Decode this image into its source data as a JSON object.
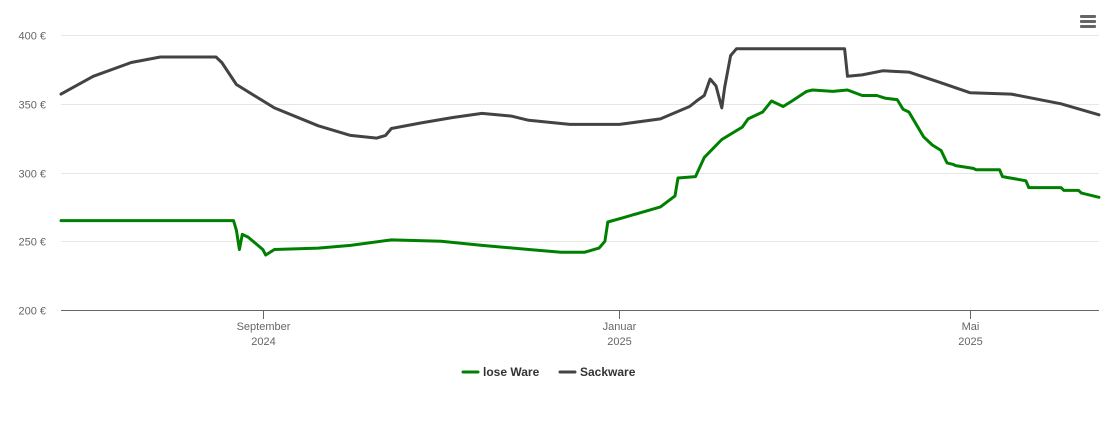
{
  "menu": {
    "icon": "hamburger-menu-icon"
  },
  "chart_data": {
    "type": "line",
    "ylim": [
      200,
      400
    ],
    "xlim": [
      "2024-06-24",
      "2025-06-14"
    ],
    "y_ticks": [
      {
        "value": 200,
        "label": "200 €"
      },
      {
        "value": 250,
        "label": "250 €"
      },
      {
        "value": 300,
        "label": "300 €"
      },
      {
        "value": 350,
        "label": "350 €"
      },
      {
        "value": 400,
        "label": "400 €"
      }
    ],
    "x_ticks": [
      {
        "date": "2024-09-01",
        "line1": "September",
        "line2": "2024"
      },
      {
        "date": "2025-01-01",
        "line1": "Januar",
        "line2": "2025"
      },
      {
        "date": "2025-05-01",
        "line1": "Mai",
        "line2": "2025"
      }
    ],
    "grid": true,
    "legend": "bottom-center",
    "series": [
      {
        "name": "lose Ware",
        "color": "#008000",
        "points": [
          [
            "2024-06-24",
            265
          ],
          [
            "2024-08-22",
            265
          ],
          [
            "2024-08-23",
            258
          ],
          [
            "2024-08-24",
            244
          ],
          [
            "2024-08-25",
            255
          ],
          [
            "2024-08-27",
            253
          ],
          [
            "2024-09-01",
            244
          ],
          [
            "2024-09-02",
            240
          ],
          [
            "2024-09-05",
            244
          ],
          [
            "2024-09-20",
            245
          ],
          [
            "2024-10-01",
            247
          ],
          [
            "2024-10-15",
            251
          ],
          [
            "2024-11-01",
            250
          ],
          [
            "2024-11-15",
            247
          ],
          [
            "2024-12-01",
            244
          ],
          [
            "2024-12-12",
            242
          ],
          [
            "2024-12-20",
            242
          ],
          [
            "2024-12-25",
            245
          ],
          [
            "2024-12-27",
            250
          ],
          [
            "2024-12-28",
            264
          ],
          [
            "2025-01-02",
            267
          ],
          [
            "2025-01-15",
            275
          ],
          [
            "2025-01-20",
            283
          ],
          [
            "2025-01-21",
            296
          ],
          [
            "2025-01-27",
            297
          ],
          [
            "2025-01-30",
            311
          ],
          [
            "2025-02-05",
            324
          ],
          [
            "2025-02-12",
            333
          ],
          [
            "2025-02-14",
            339
          ],
          [
            "2025-02-19",
            344
          ],
          [
            "2025-02-22",
            352
          ],
          [
            "2025-02-26",
            348
          ],
          [
            "2025-03-01",
            352
          ],
          [
            "2025-03-06",
            359
          ],
          [
            "2025-03-08",
            360
          ],
          [
            "2025-03-15",
            359
          ],
          [
            "2025-03-20",
            360
          ],
          [
            "2025-03-25",
            356
          ],
          [
            "2025-03-30",
            356
          ],
          [
            "2025-04-02",
            354
          ],
          [
            "2025-04-06",
            353
          ],
          [
            "2025-04-08",
            346
          ],
          [
            "2025-04-10",
            344
          ],
          [
            "2025-04-15",
            326
          ],
          [
            "2025-04-18",
            320
          ],
          [
            "2025-04-21",
            316
          ],
          [
            "2025-04-23",
            307
          ],
          [
            "2025-04-25",
            306
          ],
          [
            "2025-04-26",
            305
          ],
          [
            "2025-05-02",
            303
          ],
          [
            "2025-05-03",
            302
          ],
          [
            "2025-05-11",
            302
          ],
          [
            "2025-05-12",
            297
          ],
          [
            "2025-05-20",
            294
          ],
          [
            "2025-05-21",
            289
          ],
          [
            "2025-06-01",
            289
          ],
          [
            "2025-06-02",
            287
          ],
          [
            "2025-06-07",
            287
          ],
          [
            "2025-06-08",
            285
          ],
          [
            "2025-06-14",
            282
          ]
        ]
      },
      {
        "name": "Sackware",
        "color": "#434343",
        "points": [
          [
            "2024-06-24",
            357
          ],
          [
            "2024-07-05",
            370
          ],
          [
            "2024-07-18",
            380
          ],
          [
            "2024-07-28",
            384
          ],
          [
            "2024-08-12",
            384
          ],
          [
            "2024-08-16",
            384
          ],
          [
            "2024-08-18",
            380
          ],
          [
            "2024-08-23",
            364
          ],
          [
            "2024-09-05",
            347
          ],
          [
            "2024-09-20",
            334
          ],
          [
            "2024-10-01",
            327
          ],
          [
            "2024-10-10",
            325
          ],
          [
            "2024-10-13",
            327
          ],
          [
            "2024-10-15",
            332
          ],
          [
            "2024-10-25",
            336
          ],
          [
            "2024-11-05",
            340
          ],
          [
            "2024-11-15",
            343
          ],
          [
            "2024-11-25",
            341
          ],
          [
            "2024-11-29",
            339
          ],
          [
            "2024-12-01",
            338
          ],
          [
            "2024-12-15",
            335
          ],
          [
            "2025-01-01",
            335
          ],
          [
            "2025-01-15",
            339
          ],
          [
            "2025-01-25",
            348
          ],
          [
            "2025-01-28",
            353
          ],
          [
            "2025-01-30",
            356
          ],
          [
            "2025-02-01",
            368
          ],
          [
            "2025-02-03",
            363
          ],
          [
            "2025-02-05",
            347
          ],
          [
            "2025-02-06",
            362
          ],
          [
            "2025-02-08",
            385
          ],
          [
            "2025-02-10",
            390
          ],
          [
            "2025-03-15",
            390
          ],
          [
            "2025-03-19",
            390
          ],
          [
            "2025-03-20",
            370
          ],
          [
            "2025-03-25",
            371
          ],
          [
            "2025-04-01",
            374
          ],
          [
            "2025-04-10",
            373
          ],
          [
            "2025-04-20",
            366
          ],
          [
            "2025-05-01",
            358
          ],
          [
            "2025-05-15",
            357
          ],
          [
            "2025-06-01",
            350
          ],
          [
            "2025-06-14",
            342
          ]
        ]
      }
    ]
  }
}
